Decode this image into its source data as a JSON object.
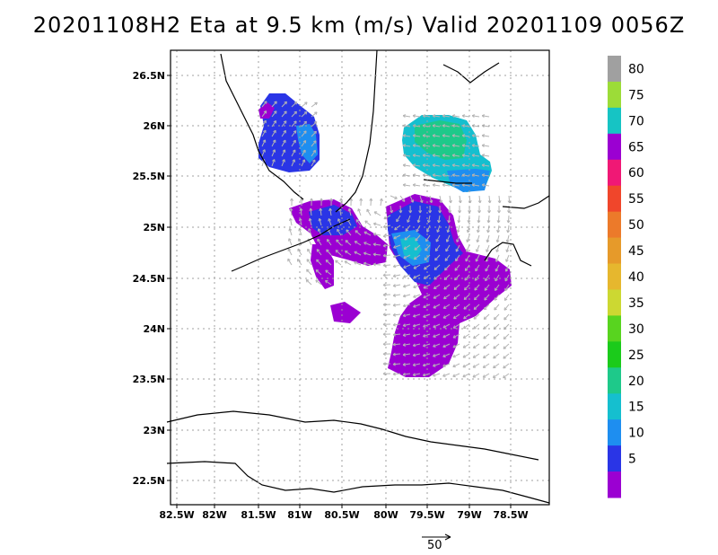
{
  "title": "20201108H2 Eta at 9.5 km (m/s) Valid 20201109 0056Z",
  "map": {
    "lon_labels": [
      "82.5W",
      "82W",
      "81.5W",
      "81W",
      "80.5W",
      "80W",
      "79.5W",
      "79W",
      "78.5W"
    ],
    "lat_labels": [
      "26.5N",
      "26N",
      "25.5N",
      "25N",
      "24.5N",
      "24N",
      "23.5N",
      "23N",
      "22.5N"
    ],
    "grid": true
  },
  "colorbar": {
    "labels": [
      "5",
      "10",
      "15",
      "20",
      "25",
      "30",
      "35",
      "40",
      "45",
      "50",
      "55",
      "60",
      "65",
      "70",
      "75",
      "80"
    ],
    "colors": [
      "#9b00d2",
      "#2a35e6",
      "#1e8ef0",
      "#15bfcf",
      "#1ec98a",
      "#1bcb1b",
      "#58d41f",
      "#ccd832",
      "#e6b72e",
      "#e69a2a",
      "#ec7a2a",
      "#f0462b",
      "#f01875",
      "#9b00d2",
      "#16c4c4",
      "#9cdc38",
      "#a0a0a0"
    ]
  },
  "reference_vector": {
    "value": "50"
  },
  "colors": {
    "land": "#000000",
    "grid": "#a0a0a0",
    "vector": "#b4b4b4"
  }
}
